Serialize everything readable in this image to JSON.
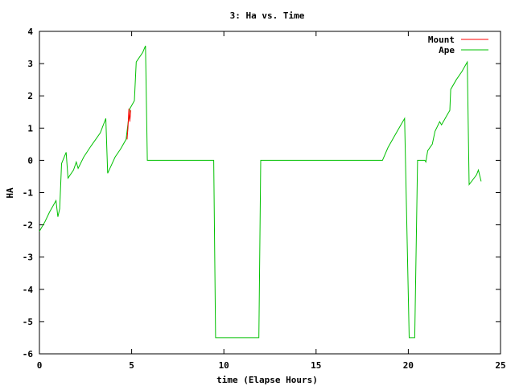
{
  "chart_data": {
    "type": "line",
    "title": "3: Ha vs. Time",
    "xlabel": "time (Elapse Hours)",
    "ylabel": "HA",
    "xlim": [
      0,
      25
    ],
    "ylim": [
      -6,
      4
    ],
    "xticks": [
      0,
      5,
      10,
      15,
      20,
      25
    ],
    "yticks": [
      4,
      3,
      2,
      1,
      0,
      -1,
      -2,
      -3,
      -4,
      -5,
      -6
    ],
    "grid": false,
    "legend": "top-right",
    "series": [
      {
        "name": "Mount",
        "color": "#ff0000",
        "points": [
          [
            4.75,
            0.65
          ],
          [
            4.8,
            1.0
          ],
          [
            4.85,
            1.6
          ],
          [
            4.9,
            1.2
          ],
          [
            4.95,
            1.55
          ]
        ]
      },
      {
        "name": "Ape",
        "color": "#00c000",
        "points": [
          [
            0,
            -2.2
          ],
          [
            0.3,
            -1.9
          ],
          [
            0.55,
            -1.6
          ],
          [
            0.9,
            -1.25
          ],
          [
            1.0,
            -1.75
          ],
          [
            1.1,
            -1.5
          ],
          [
            1.2,
            -0.1
          ],
          [
            1.45,
            0.25
          ],
          [
            1.55,
            -0.55
          ],
          [
            1.85,
            -0.3
          ],
          [
            2.0,
            -0.05
          ],
          [
            2.1,
            -0.25
          ],
          [
            2.4,
            0.1
          ],
          [
            2.8,
            0.45
          ],
          [
            3.3,
            0.85
          ],
          [
            3.6,
            1.3
          ],
          [
            3.7,
            -0.4
          ],
          [
            3.9,
            -0.15
          ],
          [
            4.1,
            0.1
          ],
          [
            4.4,
            0.35
          ],
          [
            4.7,
            0.65
          ],
          [
            4.9,
            1.6
          ],
          [
            5.0,
            1.7
          ],
          [
            5.15,
            1.85
          ],
          [
            5.25,
            3.05
          ],
          [
            5.6,
            3.35
          ],
          [
            5.75,
            3.55
          ],
          [
            5.85,
            0.0
          ],
          [
            9.45,
            0.0
          ],
          [
            9.55,
            -5.5
          ],
          [
            11.9,
            -5.5
          ],
          [
            12.0,
            0.0
          ],
          [
            18.6,
            0.0
          ],
          [
            18.9,
            0.4
          ],
          [
            19.4,
            0.9
          ],
          [
            19.8,
            1.3
          ],
          [
            20.05,
            -5.5
          ],
          [
            20.35,
            -5.5
          ],
          [
            20.5,
            0.0
          ],
          [
            20.9,
            0.0
          ],
          [
            20.95,
            -0.05
          ],
          [
            21.05,
            0.3
          ],
          [
            21.3,
            0.5
          ],
          [
            21.45,
            0.9
          ],
          [
            21.7,
            1.2
          ],
          [
            21.8,
            1.1
          ],
          [
            22.1,
            1.4
          ],
          [
            22.25,
            1.55
          ],
          [
            22.3,
            2.2
          ],
          [
            22.6,
            2.5
          ],
          [
            22.9,
            2.75
          ],
          [
            23.2,
            3.05
          ],
          [
            23.3,
            -0.75
          ],
          [
            23.7,
            -0.45
          ],
          [
            23.8,
            -0.3
          ],
          [
            23.95,
            -0.65
          ]
        ]
      }
    ]
  }
}
